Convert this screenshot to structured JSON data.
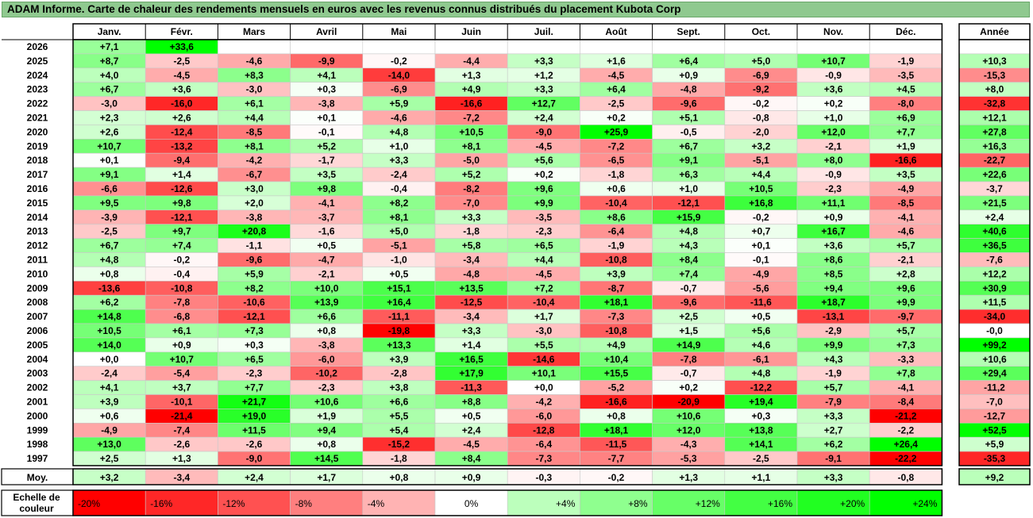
{
  "title": "ADAM Informe. Carte de chaleur des rendements mensuels en euros avec les revenus connus distribués du placement Kubota Corp",
  "chart_data": {
    "type": "heatmap",
    "months": [
      "Janv.",
      "Févr.",
      "Mars",
      "Avril",
      "Mai",
      "Juin",
      "Juil.",
      "Août",
      "Sept.",
      "Oct.",
      "Nov.",
      "Déc."
    ],
    "year_header": "Année",
    "average_label": "Moy.",
    "rows": [
      {
        "year": "2026",
        "values": [
          "+7,1",
          "+33,6",
          "",
          "",
          "",
          "",
          "",
          "",
          "",
          "",
          "",
          ""
        ],
        "annual": ""
      },
      {
        "year": "2025",
        "values": [
          "+8,7",
          "-2,5",
          "-4,6",
          "-9,9",
          "-0,2",
          "-4,4",
          "+3,3",
          "+1,6",
          "+6,4",
          "+5,0",
          "+10,7",
          "-1,9"
        ],
        "annual": "+10,3"
      },
      {
        "year": "2024",
        "values": [
          "+4,0",
          "-4,5",
          "+8,3",
          "+4,1",
          "-14,0",
          "+1,3",
          "+1,2",
          "-4,5",
          "+0,9",
          "-6,9",
          "-0,9",
          "-3,5"
        ],
        "annual": "-15,3"
      },
      {
        "year": "2023",
        "values": [
          "+6,7",
          "+3,6",
          "-3,0",
          "+0,3",
          "-6,9",
          "+4,9",
          "+3,3",
          "+6,4",
          "-4,8",
          "-9,2",
          "+3,6",
          "+4,5"
        ],
        "annual": "+8,0"
      },
      {
        "year": "2022",
        "values": [
          "-3,0",
          "-16,0",
          "+6,1",
          "-3,8",
          "+5,9",
          "-16,6",
          "+12,7",
          "-2,5",
          "-9,6",
          "-0,2",
          "+0,2",
          "-8,0"
        ],
        "annual": "-32,8"
      },
      {
        "year": "2021",
        "values": [
          "+2,3",
          "+2,6",
          "+4,4",
          "+0,1",
          "-4,6",
          "-7,2",
          "+2,4",
          "+0,2",
          "+5,1",
          "-0,8",
          "+1,0",
          "+6,9"
        ],
        "annual": "+12,1"
      },
      {
        "year": "2020",
        "values": [
          "+2,6",
          "-12,4",
          "-8,5",
          "-0,1",
          "+4,8",
          "+10,5",
          "-9,0",
          "+25,9",
          "-0,5",
          "-2,0",
          "+12,0",
          "+7,7"
        ],
        "annual": "+27,8"
      },
      {
        "year": "2019",
        "values": [
          "+10,7",
          "-13,2",
          "+8,1",
          "+5,2",
          "+1,0",
          "+8,1",
          "-4,5",
          "-7,2",
          "+6,7",
          "+3,2",
          "-2,1",
          "+1,9"
        ],
        "annual": "+16,3"
      },
      {
        "year": "2018",
        "values": [
          "+0,1",
          "-9,4",
          "-4,2",
          "-1,7",
          "+3,3",
          "-5,0",
          "+5,6",
          "-6,5",
          "+9,1",
          "-5,1",
          "+8,0",
          "-16,6"
        ],
        "annual": "-22,7"
      },
      {
        "year": "2017",
        "values": [
          "+9,1",
          "+1,4",
          "-6,7",
          "+3,5",
          "-2,4",
          "+5,2",
          "+0,2",
          "-1,8",
          "+6,3",
          "+4,4",
          "-0,9",
          "+3,5"
        ],
        "annual": "+22,6"
      },
      {
        "year": "2016",
        "values": [
          "-6,6",
          "-12,6",
          "+3,0",
          "+9,8",
          "-0,4",
          "-8,2",
          "+9,6",
          "+0,6",
          "+1,0",
          "+10,5",
          "-2,3",
          "-4,9"
        ],
        "annual": "-3,7"
      },
      {
        "year": "2015",
        "values": [
          "+9,5",
          "+9,8",
          "+2,0",
          "-4,1",
          "+8,2",
          "-7,0",
          "+9,9",
          "-10,4",
          "-12,1",
          "+16,8",
          "+11,1",
          "-8,5"
        ],
        "annual": "+21,5"
      },
      {
        "year": "2014",
        "values": [
          "-3,9",
          "-12,1",
          "-3,8",
          "-3,7",
          "+8,1",
          "+3,3",
          "-3,5",
          "+8,6",
          "+15,9",
          "-0,2",
          "+0,9",
          "-4,1"
        ],
        "annual": "+2,4"
      },
      {
        "year": "2013",
        "values": [
          "-2,5",
          "+9,7",
          "+20,8",
          "-1,6",
          "+5,0",
          "-1,8",
          "-2,3",
          "-6,4",
          "+4,8",
          "+0,7",
          "+16,7",
          "-4,6"
        ],
        "annual": "+40,6"
      },
      {
        "year": "2012",
        "values": [
          "+6,7",
          "+7,4",
          "-1,1",
          "+0,5",
          "-5,1",
          "+5,8",
          "+6,5",
          "-1,9",
          "+4,3",
          "+0,1",
          "+3,6",
          "+5,7"
        ],
        "annual": "+36,5"
      },
      {
        "year": "2011",
        "values": [
          "+4,8",
          "-0,2",
          "-9,6",
          "-4,7",
          "-1,0",
          "-3,4",
          "+4,4",
          "-10,8",
          "+8,4",
          "-0,1",
          "+8,6",
          "-2,1"
        ],
        "annual": "-7,6"
      },
      {
        "year": "2010",
        "values": [
          "+0,8",
          "-0,4",
          "+5,9",
          "-2,1",
          "+0,5",
          "-4,8",
          "-4,5",
          "+3,9",
          "+7,4",
          "-4,9",
          "+8,5",
          "+2,8"
        ],
        "annual": "+12,2"
      },
      {
        "year": "2009",
        "values": [
          "-13,6",
          "-10,8",
          "+8,2",
          "+10,0",
          "+15,1",
          "+13,5",
          "+7,2",
          "-8,7",
          "-0,7",
          "-5,6",
          "+9,4",
          "+9,6"
        ],
        "annual": "+30,9"
      },
      {
        "year": "2008",
        "values": [
          "+6,2",
          "-7,8",
          "-10,6",
          "+13,9",
          "+16,4",
          "-12,5",
          "-10,4",
          "+18,1",
          "-9,6",
          "-11,6",
          "+18,7",
          "+9,9"
        ],
        "annual": "+11,5"
      },
      {
        "year": "2007",
        "values": [
          "+14,8",
          "-6,8",
          "-12,1",
          "+6,6",
          "-11,1",
          "-3,4",
          "+1,7",
          "-7,3",
          "+2,5",
          "+0,5",
          "-13,1",
          "-9,7"
        ],
        "annual": "-34,0"
      },
      {
        "year": "2006",
        "values": [
          "+10,5",
          "+6,1",
          "+7,3",
          "+0,8",
          "-19,8",
          "+3,3",
          "-3,0",
          "-10,8",
          "+1,5",
          "+5,6",
          "-2,9",
          "+5,7"
        ],
        "annual": "-0,0"
      },
      {
        "year": "2005",
        "values": [
          "+14,0",
          "+0,9",
          "+0,3",
          "-3,8",
          "+13,3",
          "+1,4",
          "+5,5",
          "+4,9",
          "+14,9",
          "+4,6",
          "+9,9",
          "+7,3"
        ],
        "annual": "+99,2"
      },
      {
        "year": "2004",
        "values": [
          "+0,0",
          "+10,7",
          "+6,5",
          "-6,0",
          "+3,9",
          "+16,5",
          "-14,6",
          "+10,4",
          "-7,8",
          "-6,1",
          "+4,3",
          "-3,3"
        ],
        "annual": "+10,6"
      },
      {
        "year": "2003",
        "values": [
          "-2,4",
          "-5,4",
          "-2,3",
          "-10,2",
          "-2,8",
          "+17,9",
          "+10,1",
          "+15,5",
          "-0,7",
          "+4,8",
          "-1,9",
          "+7,8"
        ],
        "annual": "+29,4"
      },
      {
        "year": "2002",
        "values": [
          "+4,1",
          "+3,7",
          "+7,7",
          "-2,3",
          "+3,8",
          "-11,3",
          "+0,0",
          "-5,2",
          "+0,2",
          "-12,2",
          "+5,7",
          "-4,1"
        ],
        "annual": "-11,2"
      },
      {
        "year": "2001",
        "values": [
          "+3,9",
          "-10,1",
          "+21,7",
          "+10,6",
          "+6,6",
          "+8,8",
          "-4,2",
          "-16,6",
          "-20,9",
          "+19,4",
          "-7,9",
          "-8,4"
        ],
        "annual": "-7,0"
      },
      {
        "year": "2000",
        "values": [
          "+0,6",
          "-21,4",
          "+19,0",
          "+1,9",
          "+5,5",
          "+0,5",
          "-6,0",
          "+0,8",
          "+10,6",
          "+0,3",
          "+3,3",
          "-21,2"
        ],
        "annual": "-12,7"
      },
      {
        "year": "1999",
        "values": [
          "-4,9",
          "-7,4",
          "+11,5",
          "+9,4",
          "+5,4",
          "+2,4",
          "-12,8",
          "+18,1",
          "+12,0",
          "+13,8",
          "+2,7",
          "-2,2"
        ],
        "annual": "+52,5"
      },
      {
        "year": "1998",
        "values": [
          "+13,0",
          "-2,6",
          "-2,6",
          "+0,8",
          "-15,2",
          "-4,5",
          "-6,4",
          "-11,5",
          "-4,3",
          "+14,1",
          "+6,2",
          "+26,4"
        ],
        "annual": "+5,9"
      },
      {
        "year": "1997",
        "values": [
          "+2,5",
          "+1,3",
          "-9,0",
          "+14,5",
          "-1,8",
          "+8,4",
          "-7,3",
          "-7,7",
          "-5,3",
          "-2,5",
          "-9,1",
          "-22,2"
        ],
        "annual": "-35,3"
      }
    ],
    "averages": [
      "+3,2",
      "-3,4",
      "+2,4",
      "+1,7",
      "+0,8",
      "+0,9",
      "-0,3",
      "-0,2",
      "+1,3",
      "+1,1",
      "+3,3",
      "-0,8"
    ],
    "annual_average": "+9,2",
    "scale_label_lines": [
      "Echelle de",
      "couleur"
    ],
    "scale": [
      {
        "label": "-20%",
        "value": -20
      },
      {
        "label": "-16%",
        "value": -16
      },
      {
        "label": "-12%",
        "value": -12
      },
      {
        "label": "-8%",
        "value": -8
      },
      {
        "label": "-4%",
        "value": -4
      },
      {
        "label": "0%",
        "value": 0
      },
      {
        "label": "+4%",
        "value": 4
      },
      {
        "label": "+8%",
        "value": 8
      },
      {
        "label": "+12%",
        "value": 12
      },
      {
        "label": "+16%",
        "value": 16
      },
      {
        "label": "+20%",
        "value": 20
      },
      {
        "label": "+24%",
        "value": 24
      }
    ],
    "colors": {
      "negative": "#ff0000",
      "neutral": "#ffffff",
      "positive": "#00ff00"
    }
  }
}
